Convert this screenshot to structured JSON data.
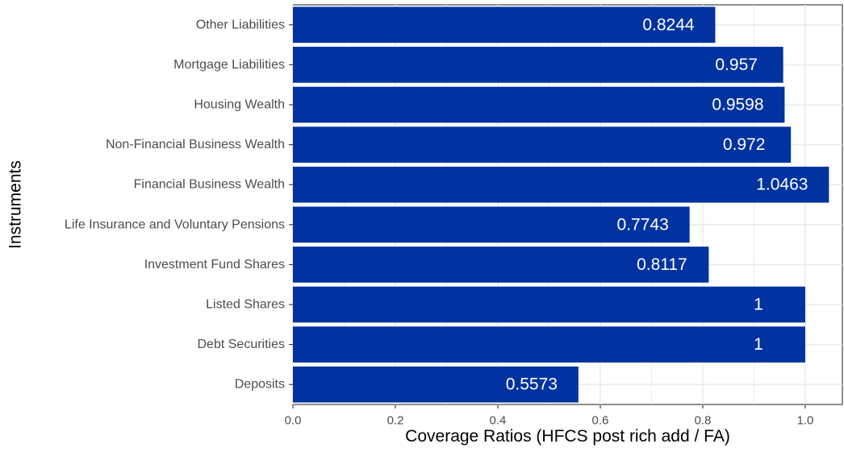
{
  "chart_data": {
    "type": "bar",
    "orientation": "horizontal",
    "categories": [
      "Other Liabilities",
      "Mortgage Liabilities",
      "Housing Wealth",
      "Non-Financial Business Wealth",
      "Financial Business Wealth",
      "Life Insurance and Voluntary Pensions",
      "Investment Fund Shares",
      "Listed Shares",
      "Debt Securities",
      "Deposits"
    ],
    "values": [
      0.8244,
      0.957,
      0.9598,
      0.972,
      1.0463,
      0.7743,
      0.8117,
      1,
      1,
      0.5573
    ],
    "value_labels": [
      "0.8244",
      "0.957",
      "0.9598",
      "0.972",
      "1.0463",
      "0.7743",
      "0.8117",
      "1",
      "1",
      "0.5573"
    ],
    "xlabel": "Coverage Ratios (HFCS post rich add / FA)",
    "ylabel": "Instruments",
    "xlim": [
      0,
      1.0725
    ],
    "x_ticks": [
      0,
      0.2,
      0.4,
      0.6,
      0.8,
      1.0
    ],
    "x_tick_labels": [
      "0.0",
      "0.2",
      "0.4",
      "0.6",
      "0.8",
      "1.0"
    ],
    "bar_color": "#0033a0",
    "grid": true,
    "legend": "none"
  }
}
